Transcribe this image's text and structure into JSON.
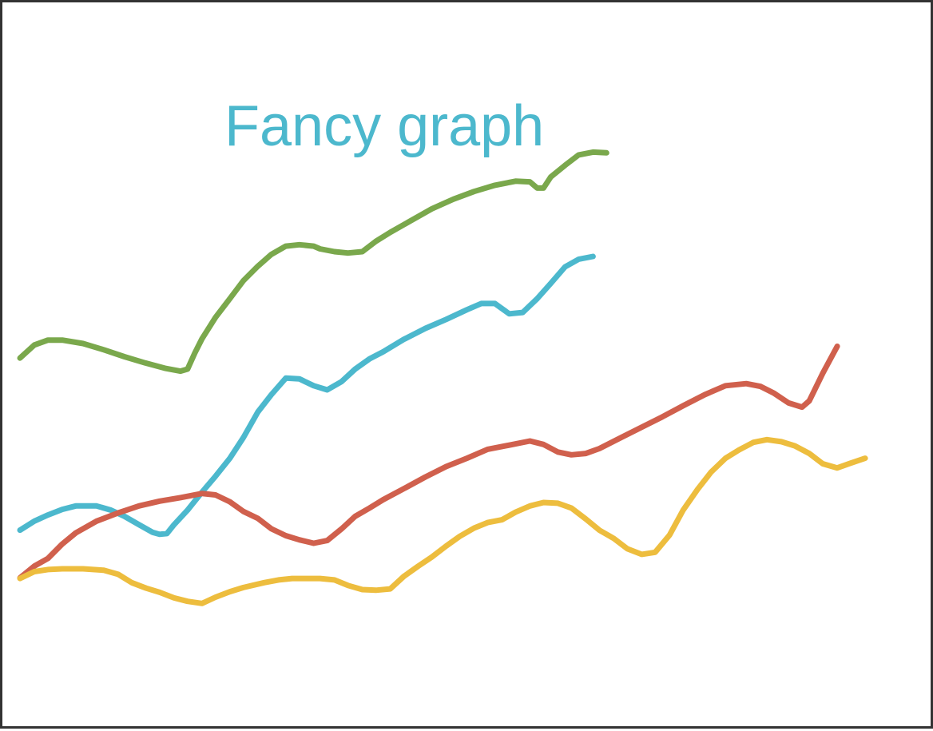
{
  "chart_data": {
    "type": "line",
    "title": "Fancy graph",
    "xlabel": "",
    "ylabel": "",
    "xlim": [
      0,
      100
    ],
    "ylim": [
      0,
      100
    ],
    "grid": false,
    "title_color": "#4cb8cd",
    "series": [
      {
        "color": "#7aa84c",
        "points": [
          [
            0,
            52
          ],
          [
            1.6,
            53.9
          ],
          [
            3.1,
            54.6
          ],
          [
            4.7,
            54.6
          ],
          [
            7,
            54.1
          ],
          [
            9.3,
            53.2
          ],
          [
            11.6,
            52.2
          ],
          [
            13.9,
            51.3
          ],
          [
            16.2,
            50.5
          ],
          [
            17.8,
            50.1
          ],
          [
            18.6,
            50.4
          ],
          [
            19.4,
            52.7
          ],
          [
            20.2,
            54.8
          ],
          [
            21.7,
            57.9
          ],
          [
            23.3,
            60.6
          ],
          [
            24.8,
            63.2
          ],
          [
            26.4,
            65.3
          ],
          [
            27.9,
            67
          ],
          [
            29.5,
            68.2
          ],
          [
            31,
            68.4
          ],
          [
            32.6,
            68.2
          ],
          [
            33.3,
            67.8
          ],
          [
            34.9,
            67.4
          ],
          [
            36.4,
            67.2
          ],
          [
            38,
            67.4
          ],
          [
            39.5,
            68.9
          ],
          [
            41.1,
            70.2
          ],
          [
            43.4,
            71.9
          ],
          [
            45.7,
            73.6
          ],
          [
            48.1,
            75
          ],
          [
            50.4,
            76.1
          ],
          [
            52.7,
            77
          ],
          [
            55,
            77.6
          ],
          [
            56.6,
            77.5
          ],
          [
            57.4,
            76.6
          ],
          [
            58.1,
            76.6
          ],
          [
            58.9,
            78.2
          ],
          [
            60.5,
            79.9
          ],
          [
            62,
            81.4
          ],
          [
            63.6,
            81.8
          ],
          [
            65.1,
            81.7
          ]
        ]
      },
      {
        "color": "#4cb8cd",
        "points": [
          [
            0,
            27.1
          ],
          [
            1.6,
            28.4
          ],
          [
            3.1,
            29.3
          ],
          [
            4.7,
            30.1
          ],
          [
            6.2,
            30.6
          ],
          [
            8.5,
            30.6
          ],
          [
            10.1,
            30
          ],
          [
            11.6,
            29.1
          ],
          [
            13.2,
            27.9
          ],
          [
            14.7,
            26.8
          ],
          [
            15.5,
            26.5
          ],
          [
            16.3,
            26.6
          ],
          [
            17.1,
            27.9
          ],
          [
            18.6,
            30
          ],
          [
            20.2,
            32.6
          ],
          [
            21.7,
            34.9
          ],
          [
            23.3,
            37.5
          ],
          [
            24.8,
            40.5
          ],
          [
            26.4,
            44.2
          ],
          [
            27.9,
            46.7
          ],
          [
            29.5,
            49.1
          ],
          [
            31,
            49
          ],
          [
            32.6,
            48
          ],
          [
            34.1,
            47.4
          ],
          [
            35.7,
            48.6
          ],
          [
            37.2,
            50.4
          ],
          [
            38.8,
            51.9
          ],
          [
            40.3,
            52.9
          ],
          [
            42.6,
            54.7
          ],
          [
            45,
            56.3
          ],
          [
            47.3,
            57.6
          ],
          [
            49.6,
            59
          ],
          [
            51.2,
            59.9
          ],
          [
            52.7,
            59.9
          ],
          [
            54.3,
            58.4
          ],
          [
            55.8,
            58.6
          ],
          [
            57.4,
            60.6
          ],
          [
            58.9,
            62.8
          ],
          [
            60.5,
            65.2
          ],
          [
            62,
            66.3
          ],
          [
            63.6,
            66.7
          ]
        ]
      },
      {
        "color": "#d0604d",
        "points": [
          [
            0,
            20.2
          ],
          [
            1.6,
            21.9
          ],
          [
            3.1,
            23
          ],
          [
            4.7,
            25.1
          ],
          [
            6.2,
            26.7
          ],
          [
            8.5,
            28.4
          ],
          [
            10.9,
            29.6
          ],
          [
            13.2,
            30.6
          ],
          [
            15.5,
            31.3
          ],
          [
            17.8,
            31.8
          ],
          [
            20.2,
            32.4
          ],
          [
            21.7,
            32.2
          ],
          [
            23.3,
            31.2
          ],
          [
            24.8,
            29.8
          ],
          [
            26.4,
            28.8
          ],
          [
            27.9,
            27.3
          ],
          [
            29.5,
            26.3
          ],
          [
            31,
            25.7
          ],
          [
            32.6,
            25.2
          ],
          [
            34.1,
            25.6
          ],
          [
            35.7,
            27.3
          ],
          [
            37.2,
            29.1
          ],
          [
            38.8,
            30.3
          ],
          [
            40.3,
            31.5
          ],
          [
            42.6,
            33.1
          ],
          [
            45,
            34.8
          ],
          [
            47.3,
            36.3
          ],
          [
            49.6,
            37.5
          ],
          [
            51.9,
            38.8
          ],
          [
            54.3,
            39.4
          ],
          [
            56.6,
            40
          ],
          [
            58.1,
            39.5
          ],
          [
            59.7,
            38.4
          ],
          [
            61.2,
            38
          ],
          [
            62.8,
            38.2
          ],
          [
            64.3,
            38.9
          ],
          [
            66.7,
            40.5
          ],
          [
            69,
            42
          ],
          [
            71.3,
            43.5
          ],
          [
            73.6,
            45.1
          ],
          [
            76,
            46.7
          ],
          [
            78.3,
            48
          ],
          [
            80.6,
            48.3
          ],
          [
            82.2,
            47.9
          ],
          [
            83.7,
            46.9
          ],
          [
            85.3,
            45.5
          ],
          [
            86.8,
            44.9
          ],
          [
            87.6,
            45.8
          ],
          [
            89.1,
            49.8
          ],
          [
            90.7,
            53.7
          ]
        ]
      },
      {
        "color": "#edbd3e",
        "points": [
          [
            0,
            20.1
          ],
          [
            1.6,
            21.1
          ],
          [
            3.1,
            21.4
          ],
          [
            4.7,
            21.5
          ],
          [
            7,
            21.5
          ],
          [
            9.3,
            21.3
          ],
          [
            10.9,
            20.7
          ],
          [
            12.4,
            19.5
          ],
          [
            14,
            18.7
          ],
          [
            15.5,
            18.1
          ],
          [
            17.1,
            17.3
          ],
          [
            18.6,
            16.8
          ],
          [
            20.2,
            16.5
          ],
          [
            21.7,
            17.4
          ],
          [
            23.3,
            18.2
          ],
          [
            24.8,
            18.8
          ],
          [
            27.1,
            19.5
          ],
          [
            28.7,
            19.9
          ],
          [
            30.2,
            20.1
          ],
          [
            31.8,
            20.1
          ],
          [
            33.3,
            20.1
          ],
          [
            34.9,
            19.9
          ],
          [
            36.4,
            19.1
          ],
          [
            38,
            18.5
          ],
          [
            39.5,
            18.4
          ],
          [
            41.1,
            18.6
          ],
          [
            42.6,
            20.4
          ],
          [
            44.2,
            21.9
          ],
          [
            45.7,
            23.2
          ],
          [
            47.3,
            24.8
          ],
          [
            48.8,
            26.2
          ],
          [
            50.4,
            27.4
          ],
          [
            51.9,
            28.2
          ],
          [
            53.5,
            28.6
          ],
          [
            55,
            29.7
          ],
          [
            56.6,
            30.6
          ],
          [
            58.1,
            31.1
          ],
          [
            59.7,
            31
          ],
          [
            61.2,
            30.3
          ],
          [
            62.8,
            28.7
          ],
          [
            64.3,
            27.1
          ],
          [
            65.9,
            25.9
          ],
          [
            67.4,
            24.4
          ],
          [
            69,
            23.6
          ],
          [
            70.5,
            23.9
          ],
          [
            72.1,
            26.4
          ],
          [
            73.6,
            30
          ],
          [
            75.2,
            33
          ],
          [
            76.7,
            35.5
          ],
          [
            78.3,
            37.5
          ],
          [
            79.8,
            38.7
          ],
          [
            81.4,
            39.8
          ],
          [
            82.9,
            40.2
          ],
          [
            84.5,
            39.9
          ],
          [
            86,
            39.3
          ],
          [
            87.6,
            38.2
          ],
          [
            89.1,
            36.7
          ],
          [
            90.7,
            36.1
          ],
          [
            92.2,
            36.8
          ],
          [
            93.8,
            37.5
          ]
        ]
      }
    ]
  }
}
